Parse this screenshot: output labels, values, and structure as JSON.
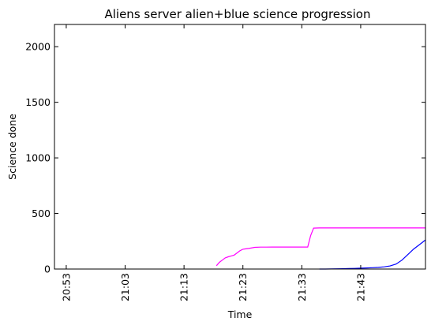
{
  "chart_data": {
    "type": "line",
    "title": "Aliens server alien+blue science progression",
    "xlabel": "Time",
    "ylabel": "Science done",
    "x_ticks": [
      "20:53",
      "21:03",
      "21:13",
      "21:23",
      "21:33",
      "21:43"
    ],
    "x_tick_minutes": [
      0,
      10,
      20,
      30,
      40,
      50
    ],
    "xlim_minutes": [
      -2,
      61
    ],
    "y_ticks": [
      0,
      500,
      1000,
      1500,
      2000
    ],
    "ylim": [
      0,
      2200
    ],
    "grid": false,
    "legend": "none",
    "series": [
      {
        "color": "#ff00ff",
        "x_minutes": [
          25.5,
          26.0,
          26.5,
          27.0,
          27.5,
          28.0,
          28.5,
          29.0,
          29.5,
          30.0,
          30.5,
          31.0,
          32.0,
          33.0,
          34.0,
          35.0,
          36.0,
          38.0,
          40.0,
          41.0,
          41.5,
          42.0,
          43.0,
          45.0,
          50.0,
          55.0,
          61.0
        ],
        "values": [
          30,
          60,
          80,
          100,
          110,
          118,
          125,
          145,
          165,
          178,
          182,
          185,
          195,
          197,
          197,
          198,
          198,
          198,
          198,
          198,
          300,
          368,
          370,
          370,
          370,
          370,
          370
        ]
      },
      {
        "color": "#0000ff",
        "x_minutes": [
          43.0,
          44.0,
          45.0,
          46.0,
          47.0,
          48.0,
          49.0,
          50.0,
          51.0,
          52.0,
          53.0,
          54.0,
          55.0,
          56.0,
          57.0,
          58.0,
          59.0,
          60.0,
          61.0
        ],
        "values": [
          0,
          0,
          1,
          2,
          3,
          4,
          6,
          8,
          10,
          12,
          15,
          20,
          28,
          45,
          80,
          130,
          180,
          220,
          262
        ]
      }
    ]
  }
}
